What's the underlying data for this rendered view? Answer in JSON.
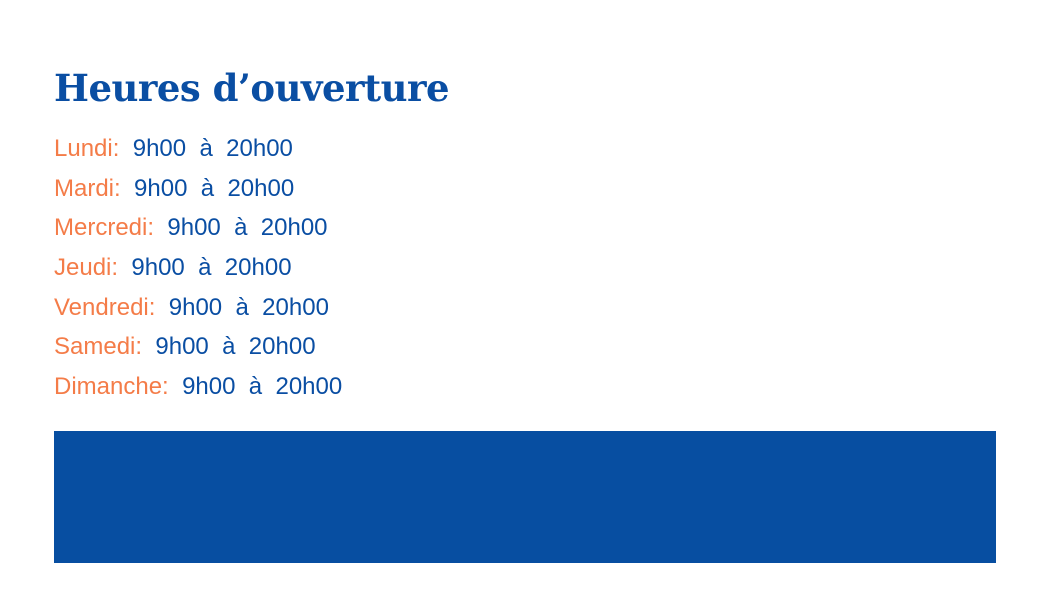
{
  "title": "Heures d’ouverture",
  "hours": [
    {
      "day": "Lundi:",
      "time": "9h00  à  20h00"
    },
    {
      "day": "Mardi:",
      "time": "9h00  à  20h00"
    },
    {
      "day": "Mercredi:",
      "time": "9h00  à  20h00"
    },
    {
      "day": "Jeudi:",
      "time": "9h00  à  20h00"
    },
    {
      "day": "Vendredi:",
      "time": "9h00  à  20h00"
    },
    {
      "day": "Samedi:",
      "time": "9h00  à  20h00"
    },
    {
      "day": "Dimanche:",
      "time": "9h00  à  20h00"
    }
  ],
  "colors": {
    "primary": "#0a4ea3",
    "accent": "#f47c48",
    "bar": "#074ea1"
  }
}
